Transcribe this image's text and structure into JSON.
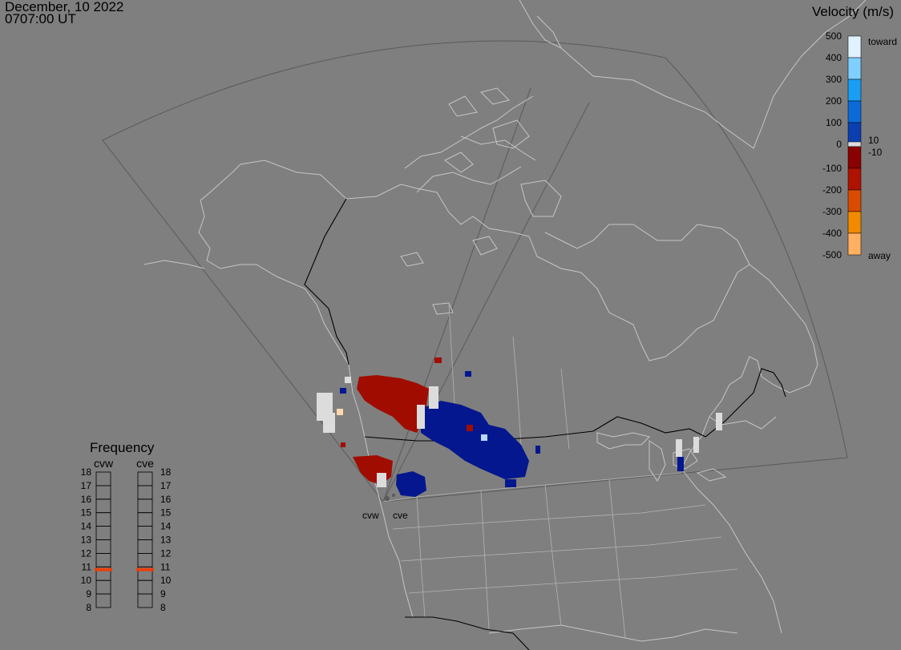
{
  "header": {
    "date": "December, 10 2022",
    "time": "0707:00 UT"
  },
  "velocity_scale": {
    "title": "Velocity (m/s)",
    "ticks": [
      "500",
      "400",
      "300",
      "200",
      "100",
      "0",
      "-100",
      "-200",
      "-300",
      "-400",
      "-500"
    ],
    "toward_label": "toward",
    "away_label": "away",
    "gap_labels": [
      "10",
      "-10"
    ],
    "colors": {
      "toward": [
        "#e0f2ff",
        "#7fd0ff",
        "#1a9ef5",
        "#0a6ad8",
        "#0b3fb0",
        "#05178e"
      ],
      "away": [
        "#8b0000",
        "#b01200",
        "#d94b00",
        "#f28a00",
        "#ffb060",
        "#ffe0c0"
      ],
      "low": "#dcdcdc"
    }
  },
  "frequency_panel": {
    "title": "Frequency",
    "radars": [
      {
        "name": "cvw",
        "frequency": 10.8
      },
      {
        "name": "cve",
        "frequency": 10.8
      }
    ],
    "ticks": [
      "18",
      "17",
      "16",
      "15",
      "14",
      "13",
      "12",
      "11",
      "10",
      "9",
      "8"
    ],
    "marker_color": "#e8400c"
  },
  "map": {
    "radar_sites": [
      {
        "label": "cvw"
      },
      {
        "label": "cve"
      }
    ],
    "background_color": "#7f7f7f",
    "coastline_color": "#c8c8c8",
    "border_color": "#000000",
    "fov_color": "#5a5a5a"
  }
}
